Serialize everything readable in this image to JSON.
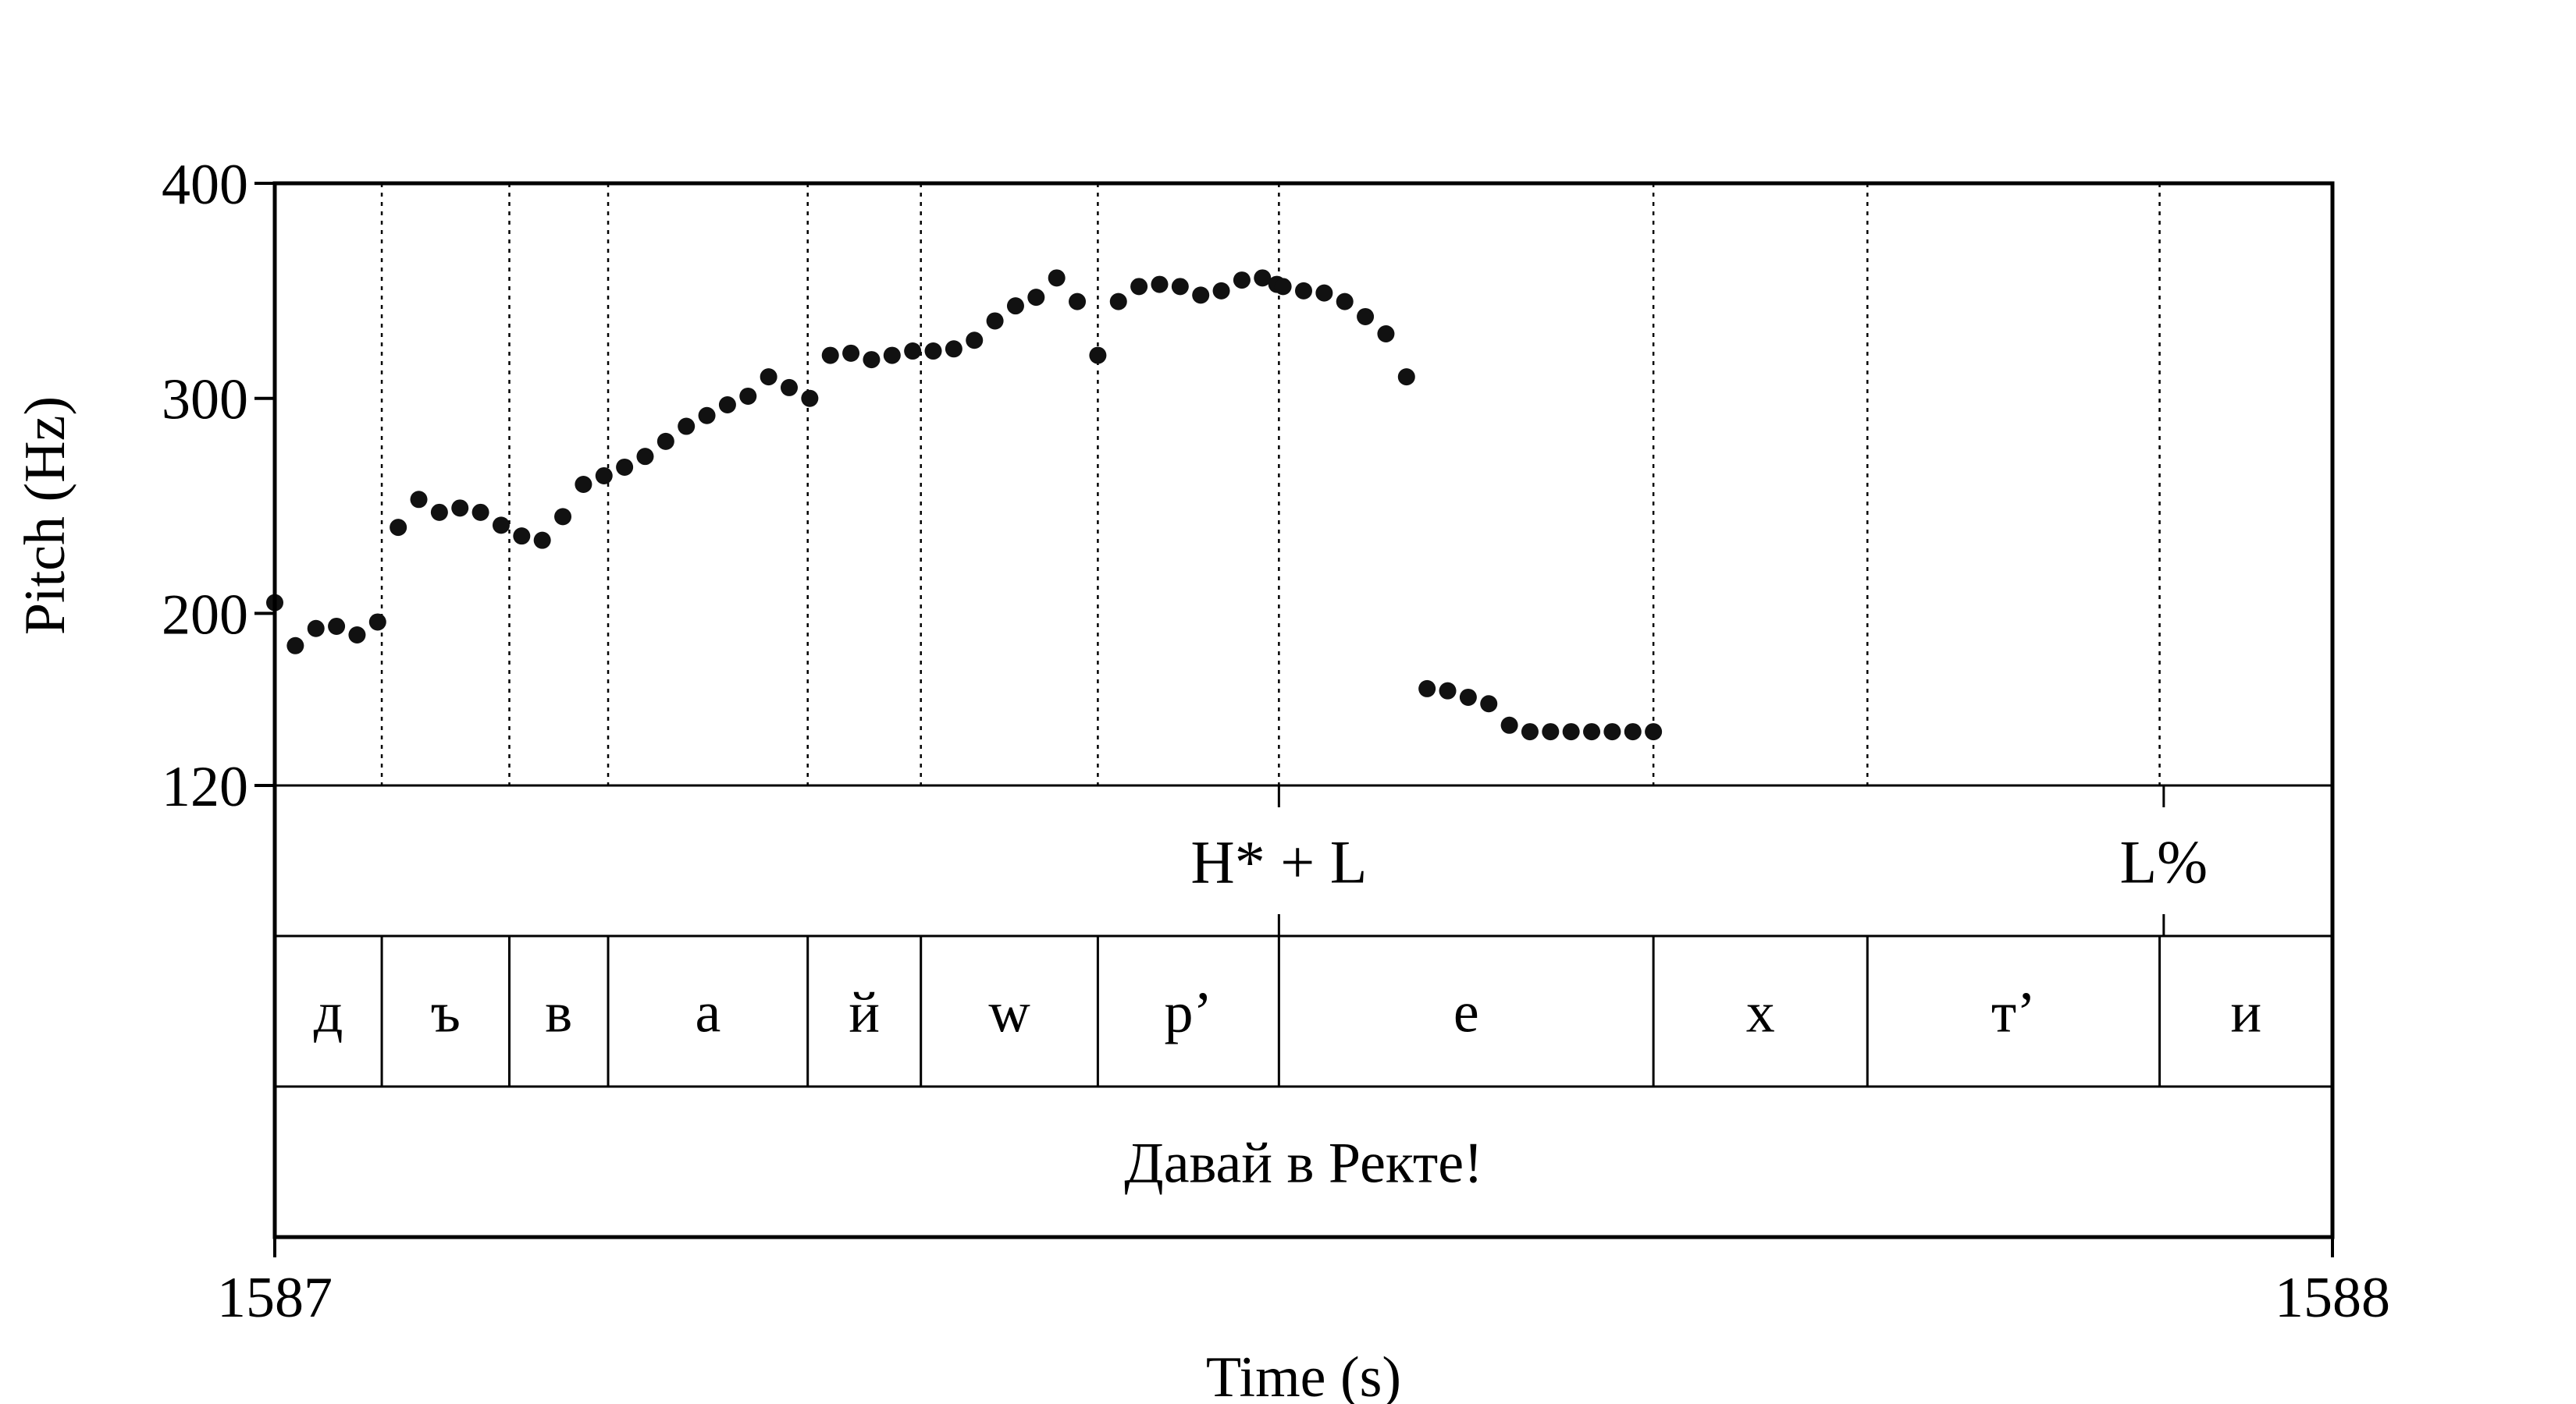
{
  "chart_data": {
    "type": "scatter",
    "title": "",
    "xlabel": "Time (s)",
    "ylabel": "Pitch (Hz)",
    "xlim": [
      1587,
      1588
    ],
    "x_ticks": [
      1587,
      1588
    ],
    "x_tick_labels": [
      "1587",
      "1588"
    ],
    "ylim": [
      120,
      400
    ],
    "y_ticks": [
      120,
      200,
      300,
      400
    ],
    "y_tick_labels": [
      "120",
      "200",
      "300",
      "400"
    ],
    "grid": false,
    "legend": "none",
    "point_color": "#111111",
    "series": [
      {
        "x": [
          1587.0,
          1587.01,
          1587.02,
          1587.03,
          1587.04,
          1587.05,
          1587.06,
          1587.07,
          1587.08,
          1587.09,
          1587.1,
          1587.11,
          1587.12,
          1587.13,
          1587.14,
          1587.15,
          1587.16,
          1587.17,
          1587.18,
          1587.19,
          1587.2,
          1587.21,
          1587.22,
          1587.23,
          1587.24,
          1587.25,
          1587.26,
          1587.27,
          1587.28,
          1587.29,
          1587.3,
          1587.31,
          1587.32,
          1587.33,
          1587.34,
          1587.35,
          1587.36,
          1587.37,
          1587.38,
          1587.39,
          1587.4,
          1587.41,
          1587.42,
          1587.43,
          1587.44,
          1587.45,
          1587.46,
          1587.47,
          1587.48,
          1587.487,
          1587.49,
          1587.5,
          1587.51,
          1587.52,
          1587.53,
          1587.54,
          1587.55,
          1587.56,
          1587.57,
          1587.58,
          1587.59,
          1587.6,
          1587.61,
          1587.62,
          1587.63,
          1587.64,
          1587.65,
          1587.66,
          1587.67
        ],
        "y": [
          205,
          185,
          193,
          194,
          190,
          196,
          240,
          253,
          247,
          249,
          247,
          241,
          236,
          234,
          245,
          260,
          264,
          268,
          273,
          280,
          287,
          292,
          297,
          301,
          310,
          305,
          300,
          320,
          321,
          318,
          320,
          322,
          322,
          323,
          327,
          336,
          343,
          347,
          356,
          345,
          320,
          345,
          352,
          353,
          352,
          348,
          350,
          355,
          356,
          353,
          352,
          350,
          349,
          345,
          338,
          330,
          310,
          165,
          164,
          161,
          158,
          148,
          145,
          145,
          145,
          145,
          145,
          145,
          145
        ]
      }
    ],
    "tiers": [
      {
        "name": "tones",
        "labels": [
          {
            "x": 1587.488,
            "text": "H* + L"
          },
          {
            "x": 1587.918,
            "text": "L%"
          }
        ]
      },
      {
        "name": "segments",
        "intervals": [
          {
            "start": 1587.0,
            "end": 1587.052,
            "text": "д"
          },
          {
            "start": 1587.052,
            "end": 1587.114,
            "text": "ъ"
          },
          {
            "start": 1587.114,
            "end": 1587.162,
            "text": "в"
          },
          {
            "start": 1587.162,
            "end": 1587.259,
            "text": "а"
          },
          {
            "start": 1587.259,
            "end": 1587.314,
            "text": "й"
          },
          {
            "start": 1587.314,
            "end": 1587.4,
            "text": "w"
          },
          {
            "start": 1587.4,
            "end": 1587.488,
            "text": "р’"
          },
          {
            "start": 1587.488,
            "end": 1587.67,
            "text": "е"
          },
          {
            "start": 1587.67,
            "end": 1587.774,
            "text": "х"
          },
          {
            "start": 1587.774,
            "end": 1587.916,
            "text": "т’"
          },
          {
            "start": 1587.916,
            "end": 1588.0,
            "text": "и"
          }
        ]
      },
      {
        "name": "sentence",
        "intervals": [
          {
            "start": 1587.0,
            "end": 1588.0,
            "text": "Давай в Ректе!"
          }
        ]
      }
    ]
  }
}
